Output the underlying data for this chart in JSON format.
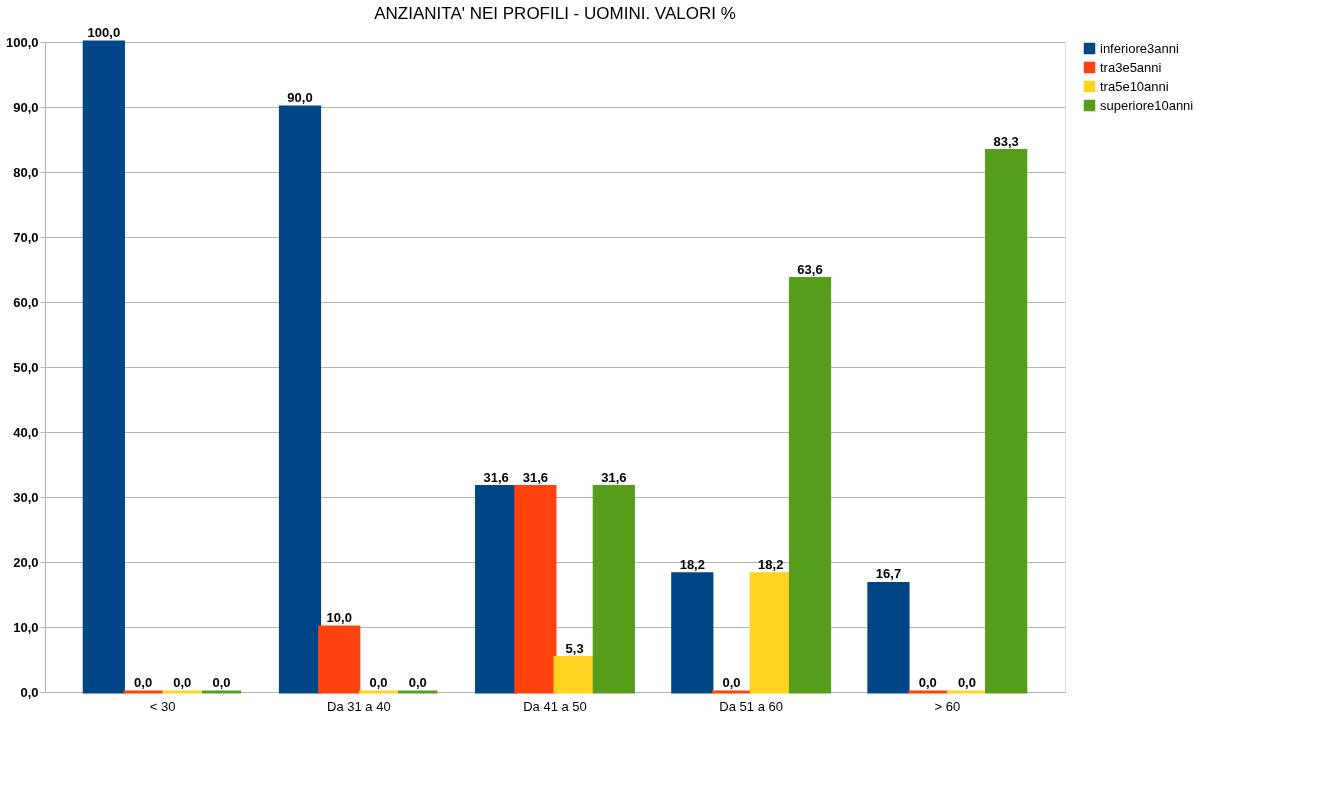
{
  "chart_data": {
    "type": "bar",
    "title": "ANZIANITA' NEI PROFILI - UOMINI. VALORI %",
    "categories": [
      "< 30",
      "Da 31 a 40",
      "Da 41 a 50",
      "Da 51 a 60",
      "> 60"
    ],
    "series": [
      {
        "name": "inferiore3anni",
        "color": "#004586",
        "values": [
          100.0,
          90.0,
          31.6,
          18.2,
          16.7
        ],
        "value_labels": [
          "100,0",
          "90,0",
          "31,6",
          "18,2",
          "16,7"
        ]
      },
      {
        "name": "tra3e5anni",
        "color": "#ff420e",
        "values": [
          0.0,
          10.0,
          31.6,
          0.0,
          0.0
        ],
        "value_labels": [
          "0,0",
          "10,0",
          "31,6",
          "0,0",
          "0,0"
        ]
      },
      {
        "name": "tra5e10anni",
        "color": "#ffd320",
        "values": [
          0.0,
          0.0,
          5.3,
          18.2,
          0.0
        ],
        "value_labels": [
          "0,0",
          "0,0",
          "5,3",
          "18,2",
          "0,0"
        ]
      },
      {
        "name": "superiore10anni",
        "color": "#579d1c",
        "values": [
          0.0,
          0.0,
          31.6,
          63.6,
          83.3
        ],
        "value_labels": [
          "0,0",
          "0,0",
          "31,6",
          "63,6",
          "83,3"
        ]
      }
    ],
    "ylim": [
      0,
      100
    ],
    "yticks": [
      {
        "value": 0,
        "label": "0,0"
      },
      {
        "value": 10,
        "label": "10,0"
      },
      {
        "value": 20,
        "label": "20,0"
      },
      {
        "value": 30,
        "label": "30,0"
      },
      {
        "value": 40,
        "label": "40,0"
      },
      {
        "value": 50,
        "label": "50,0"
      },
      {
        "value": 60,
        "label": "60,0"
      },
      {
        "value": 70,
        "label": "70,0"
      },
      {
        "value": 80,
        "label": "80,0"
      },
      {
        "value": 90,
        "label": "90,0"
      },
      {
        "value": 100,
        "label": "100,0"
      }
    ],
    "grid": "y",
    "legend": "right"
  }
}
